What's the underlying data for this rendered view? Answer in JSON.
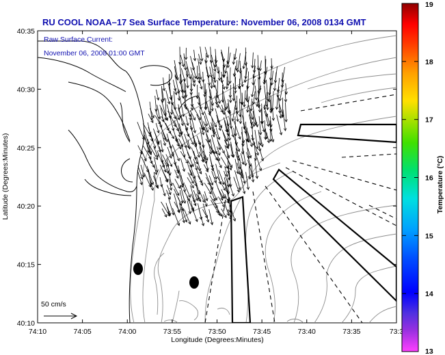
{
  "title": "RU COOL  NOAA–17  Sea Surface Temperature:  November 06, 2008 0134 GMT",
  "overlay": {
    "line1": "Raw Surface Current:",
    "line2": "November 06, 2008 01:00 GMT"
  },
  "axes": {
    "xlabel": "Longitude (Degrees:Minutes)",
    "ylabel": "Latitude (Degrees:Minutes)",
    "xticks": [
      "74:10",
      "74:05",
      "74:00",
      "73:55",
      "73:50",
      "73:45",
      "73:40",
      "73:35",
      "73:3"
    ],
    "yticks": [
      "40:35",
      "40:30",
      "40:25",
      "40:20",
      "40:15",
      "40:10"
    ]
  },
  "scale": {
    "label": "50 cm/s"
  },
  "colorbar": {
    "label": "Temperature (°C)",
    "ticks": [
      "19",
      "18",
      "17",
      "16",
      "15",
      "14",
      "13"
    ],
    "min": 13,
    "max": 19
  },
  "colors": {
    "title": "#1010b0",
    "land_outline": "#000000",
    "contours": "#808080"
  }
}
